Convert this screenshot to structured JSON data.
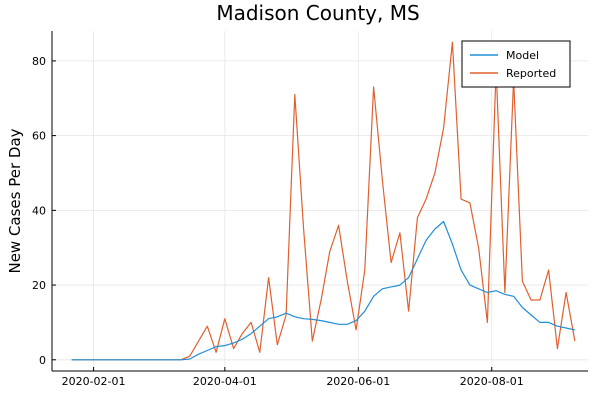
{
  "chart_data": {
    "type": "line",
    "title": "Madison County, MS",
    "xlabel": "",
    "ylabel": "New Cases Per Day",
    "x_axis": {
      "type": "date",
      "range": [
        "2020-01-13",
        "2020-09-14"
      ],
      "ticks": [
        "2020-02-01",
        "2020-04-01",
        "2020-06-01",
        "2020-08-01"
      ]
    },
    "ylim": [
      -3,
      88
    ],
    "yticks": [
      0,
      20,
      40,
      60,
      80
    ],
    "grid": true,
    "legend": {
      "position": "top-right",
      "entries": [
        "Model",
        "Reported"
      ]
    },
    "x": [
      "2020-01-22",
      "2020-02-01",
      "2020-02-11",
      "2020-02-21",
      "2020-03-02",
      "2020-03-12",
      "2020-03-16",
      "2020-03-20",
      "2020-03-24",
      "2020-03-28",
      "2020-04-01",
      "2020-04-05",
      "2020-04-09",
      "2020-04-13",
      "2020-04-17",
      "2020-04-21",
      "2020-04-25",
      "2020-04-29",
      "2020-05-03",
      "2020-05-07",
      "2020-05-11",
      "2020-05-15",
      "2020-05-19",
      "2020-05-23",
      "2020-05-27",
      "2020-05-31",
      "2020-06-04",
      "2020-06-08",
      "2020-06-12",
      "2020-06-16",
      "2020-06-20",
      "2020-06-24",
      "2020-06-28",
      "2020-07-02",
      "2020-07-06",
      "2020-07-10",
      "2020-07-14",
      "2020-07-18",
      "2020-07-22",
      "2020-07-26",
      "2020-07-30",
      "2020-08-03",
      "2020-08-07",
      "2020-08-11",
      "2020-08-15",
      "2020-08-19",
      "2020-08-23",
      "2020-08-27",
      "2020-08-31",
      "2020-09-04",
      "2020-09-08"
    ],
    "series": [
      {
        "name": "Model",
        "color": "#1f8fd6",
        "values": [
          0,
          0,
          0,
          0,
          0,
          0,
          0.2,
          1.5,
          2.5,
          3.5,
          3.8,
          4.5,
          5.5,
          7,
          9,
          11,
          11.5,
          12.5,
          11.5,
          11,
          10.8,
          10.5,
          10,
          9.5,
          9.5,
          10.5,
          13,
          17,
          19,
          19.5,
          20,
          22,
          27,
          32,
          35,
          37,
          31,
          24,
          20,
          19,
          18,
          18.5,
          17.5,
          17,
          14,
          12,
          10,
          10,
          9,
          8.5,
          8
        ]
      },
      {
        "name": "Reported",
        "color": "#e0602f",
        "values": [
          0,
          0,
          0,
          0,
          0,
          0,
          1,
          5,
          9,
          2,
          11,
          3,
          7,
          10,
          2,
          22,
          4,
          12,
          71,
          35,
          5,
          16,
          29,
          36,
          21,
          8,
          24,
          73,
          48,
          26,
          34,
          13,
          38,
          43,
          50,
          62,
          85,
          43,
          42,
          30,
          10,
          78,
          18,
          75,
          21,
          16,
          16,
          24,
          3,
          18,
          5
        ]
      }
    ]
  }
}
